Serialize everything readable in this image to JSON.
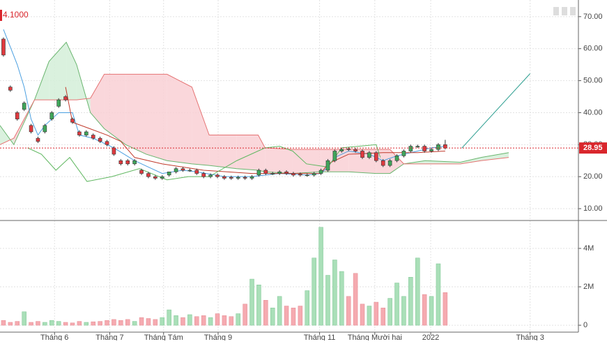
{
  "chart_data": [
    {
      "type": "candlestick",
      "corner_label": "4.1000",
      "x": [
        0,
        1,
        2,
        3,
        4,
        5,
        6,
        7,
        8,
        9,
        10,
        11,
        12,
        13,
        14,
        15,
        16,
        17,
        18,
        19,
        20,
        21,
        22,
        23,
        24,
        25,
        26,
        27,
        28,
        29,
        30,
        31,
        32,
        33,
        34,
        35,
        36,
        37,
        38,
        39,
        40,
        41,
        42,
        43,
        44,
        45,
        46,
        47,
        48,
        49,
        50,
        51,
        52,
        53,
        54,
        55,
        56,
        57,
        58,
        59,
        60,
        61,
        62,
        63,
        64
      ],
      "open": [
        63,
        48,
        40,
        41,
        36,
        32,
        34,
        38,
        42,
        45,
        38,
        34,
        33,
        33,
        32,
        31,
        29,
        25,
        25,
        24,
        22,
        21,
        20,
        19.5,
        20.5,
        21.5,
        22.5,
        22,
        22,
        21,
        20,
        20.5,
        20,
        19.8,
        19.5,
        19.8,
        19.5,
        20.5,
        22,
        21,
        21,
        21.5,
        21,
        20.8,
        20.5,
        20.5,
        21,
        22,
        25,
        28,
        28.7,
        28.5,
        28,
        26,
        27.5,
        25,
        23.5,
        25,
        26.5,
        28,
        29.5,
        29.5,
        28,
        28.5,
        30
      ],
      "high": [
        63.5,
        48.5,
        40.5,
        43.5,
        36.5,
        32.5,
        36.5,
        40.5,
        44.5,
        45.5,
        38.5,
        34.5,
        34.5,
        33.5,
        32.5,
        31.5,
        29.5,
        25.5,
        25.5,
        25.5,
        22.5,
        21.5,
        20.5,
        20.5,
        21.5,
        23,
        23,
        22.5,
        22.5,
        21.5,
        21,
        21,
        20.5,
        20.3,
        20.3,
        20.3,
        20.5,
        22.5,
        22.5,
        21.5,
        22,
        22,
        21.5,
        21.3,
        21,
        21.5,
        22.5,
        25.5,
        28.5,
        29,
        29.2,
        29,
        28.5,
        28,
        28,
        25.5,
        25.5,
        27,
        28.5,
        30,
        30,
        30,
        29,
        30.5,
        31.5
      ],
      "low": [
        57.5,
        46.5,
        37.5,
        40.5,
        33.5,
        30.5,
        33.5,
        37.5,
        41.5,
        43.5,
        36.5,
        32.5,
        32.5,
        31.5,
        30.5,
        29.5,
        26.5,
        23.5,
        23.5,
        23.5,
        20.5,
        19.5,
        19,
        19,
        20,
        21,
        21.5,
        21.5,
        20.5,
        19.5,
        19.5,
        19.5,
        19,
        19,
        19,
        19,
        19,
        20,
        20.5,
        20.5,
        20.5,
        20.5,
        20,
        20,
        20,
        20,
        20.5,
        21.5,
        24.5,
        27.5,
        28,
        27.5,
        25.5,
        25.5,
        24.5,
        23,
        23,
        24.5,
        26,
        27.5,
        29,
        27.5,
        27.5,
        28,
        28.5
      ],
      "close": [
        58,
        47,
        38,
        43,
        34,
        31,
        36,
        40,
        44,
        44,
        37,
        33,
        34,
        32,
        31,
        30,
        27,
        24,
        24,
        25,
        21,
        20,
        19.5,
        20,
        21.5,
        22.5,
        22,
        22,
        21,
        20,
        20.5,
        20,
        19.5,
        19.5,
        19.8,
        19.5,
        20,
        22,
        21,
        21,
        21.5,
        21,
        20.5,
        20.5,
        20.5,
        21,
        22,
        25,
        28,
        28.5,
        28.5,
        28,
        26,
        27.5,
        25,
        23.5,
        25,
        26.5,
        28,
        29.5,
        29.5,
        28,
        28.5,
        30,
        28.95
      ],
      "up_color": "#3fa65a",
      "down_color": "#e0393e",
      "cloud": {
        "x": [
          -0.5,
          1.5,
          4.5,
          6.6,
          9.1,
          10.6,
          12.6,
          14.6,
          17.7,
          20.7,
          23.7,
          27.3,
          29.8,
          33.8,
          36.9,
          37.9,
          41.9,
          46,
          50,
          54,
          56,
          58,
          61.1,
          66.2,
          69.2,
          73.2
        ],
        "span_a": [
          36,
          30,
          44,
          56,
          62,
          55,
          40,
          35,
          30,
          27,
          25,
          24,
          23.5,
          22.5,
          22,
          21.5,
          21,
          21.5,
          21.5,
          21,
          21,
          24,
          25,
          24.5,
          26,
          27.5
        ],
        "span_b": [
          30,
          32,
          44,
          44,
          44,
          44,
          44.5,
          52,
          52,
          52,
          52,
          48,
          33,
          33,
          33,
          29,
          28.5,
          28.5,
          28.5,
          28.5,
          28.5,
          24,
          24,
          24,
          25,
          26
        ],
        "a_color": "#6ab56f",
        "b_color": "#e57373",
        "up_fill": "#d3eed8",
        "down_fill": "#f9d0d5"
      },
      "series": [
        {
          "color": "#4a9fe0",
          "x": [
            0,
            2,
            3,
            4,
            5,
            6,
            8,
            10,
            11,
            13,
            16,
            19,
            21,
            23,
            26,
            28,
            32,
            36,
            40,
            44,
            46,
            47,
            48,
            50,
            53,
            55,
            57,
            60,
            62,
            64
          ],
          "values": [
            66,
            55,
            48,
            38,
            33,
            36,
            40,
            40,
            33,
            32,
            29,
            25,
            23,
            21,
            22,
            21.5,
            20,
            20,
            21,
            20.5,
            21,
            23,
            26,
            28,
            27,
            25,
            26.5,
            28,
            29,
            29.5
          ]
        },
        {
          "color": "#c0392b",
          "x": [
            9,
            10,
            15,
            17,
            19,
            23,
            26,
            29,
            36,
            46,
            47,
            50,
            55,
            60,
            64
          ],
          "values": [
            48,
            37,
            33,
            31,
            26,
            24,
            23,
            22,
            21,
            21,
            24,
            27,
            27.5,
            27.5,
            28
          ]
        },
        {
          "color": "#5fb760",
          "x": [
            3.5,
            5.5,
            7.6,
            9.6,
            12.1,
            15.7,
            19.7,
            23.7,
            26.8,
            29.8,
            33.8,
            37.9,
            40,
            41.9,
            43.9,
            47,
            49,
            54,
            54.6
          ],
          "values": [
            29,
            27,
            22,
            26,
            18.5,
            20,
            22.5,
            19,
            20,
            20,
            25,
            29,
            29.5,
            28,
            24,
            23,
            29,
            30,
            26
          ]
        },
        {
          "color": "#2a9d8f",
          "x": [
            66.4,
            76.3
          ],
          "values": [
            28.9,
            52.2
          ]
        }
      ],
      "last_price": 28.95,
      "last_price_color": "#d9262c",
      "xlim": [
        -0.5,
        83.3
      ],
      "ylim": [
        6.3,
        75.2
      ],
      "yticks": [
        {
          "value": 10,
          "label": "10.00"
        },
        {
          "value": 20,
          "label": "20.00"
        },
        {
          "value": 30,
          "label": "30.00"
        },
        {
          "value": 40,
          "label": "40.00"
        },
        {
          "value": 50,
          "label": "50.00"
        },
        {
          "value": 60,
          "label": "60.00"
        },
        {
          "value": 70,
          "label": "70.00"
        }
      ],
      "grid": true
    },
    {
      "type": "bar",
      "x": [
        0,
        1,
        2,
        3,
        4,
        5,
        6,
        7,
        8,
        9,
        10,
        11,
        12,
        13,
        14,
        15,
        16,
        17,
        18,
        19,
        20,
        21,
        22,
        23,
        24,
        25,
        26,
        27,
        28,
        29,
        30,
        31,
        32,
        33,
        34,
        35,
        36,
        37,
        38,
        39,
        40,
        41,
        42,
        43,
        44,
        45,
        46,
        47,
        48,
        49,
        50,
        51,
        52,
        53,
        54,
        55,
        56,
        57,
        58,
        59,
        60,
        61,
        62,
        63,
        64
      ],
      "values": [
        250000,
        150000,
        200000,
        700000,
        150000,
        200000,
        150000,
        250000,
        200000,
        150000,
        120000,
        200000,
        150000,
        180000,
        200000,
        250000,
        300000,
        250000,
        300000,
        200000,
        400000,
        350000,
        300000,
        400000,
        800000,
        500000,
        400000,
        550000,
        450000,
        500000,
        400000,
        600000,
        500000,
        450000,
        600000,
        1100000,
        2400000,
        2100000,
        1300000,
        900000,
        1500000,
        1000000,
        900000,
        1000000,
        1800000,
        3500000,
        5100000,
        2600000,
        3400000,
        2800000,
        1500000,
        2700000,
        1100000,
        1000000,
        1200000,
        900000,
        1400000,
        2200000,
        1500000,
        2500000,
        3500000,
        1600000,
        1500000,
        3200000,
        1700000
      ],
      "up_color": "#a9dfb8",
      "down_color": "#f5aab0",
      "xlim": [
        -0.5,
        83.3
      ],
      "xticks": [
        {
          "value": 7.4,
          "label": "Tháng 6"
        },
        {
          "value": 15.4,
          "label": "Tháng 7"
        },
        {
          "value": 23.2,
          "label": "Tháng Tám"
        },
        {
          "value": 31.1,
          "label": "Tháng 9"
        },
        {
          "value": 45.8,
          "label": "Tháng 11"
        },
        {
          "value": 53.8,
          "label": "Tháng Mười hai"
        },
        {
          "value": 61.9,
          "label": "2022"
        },
        {
          "value": 76.3,
          "label": "Tháng 3"
        }
      ],
      "ylim": [
        -360000,
        5380000
      ],
      "yticks": [
        0,
        {
          "value": 2000000,
          "label": "2M"
        },
        {
          "value": 4000000,
          "label": "4M"
        }
      ],
      "grid": true
    }
  ]
}
